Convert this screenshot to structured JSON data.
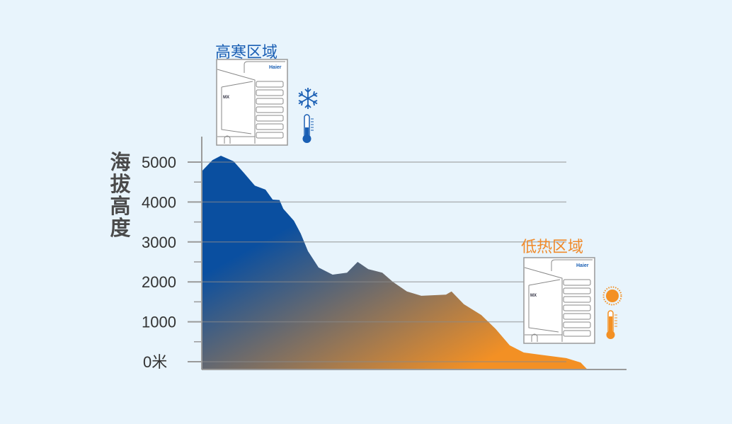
{
  "colors": {
    "cold": "#0a4fa0",
    "hot": "#f39024",
    "axis": "#9a9a9a",
    "text": "#333333"
  },
  "zones": {
    "cold": {
      "title": "高寒区域",
      "icons": [
        "snowflake-icon",
        "thermometer-low-icon"
      ],
      "unit_brand": "Haier",
      "unit_model": "MX"
    },
    "hot": {
      "title": "低热区域",
      "icons": [
        "sun-icon",
        "thermometer-high-icon"
      ],
      "unit_brand": "Haier",
      "unit_model": "MX"
    }
  },
  "chart_data": {
    "type": "area",
    "ylabel": "海拔高度",
    "ylim": [
      -200,
      5800
    ],
    "yticks": [
      0,
      1000,
      2000,
      3000,
      4000,
      5000
    ],
    "ytick_labels": [
      "0米",
      "1000",
      "2000",
      "3000",
      "4000",
      "5000"
    ],
    "grid": true,
    "x": [
      0,
      2.5,
      4.5,
      7.5,
      10,
      12.5,
      15,
      16.7,
      18.3,
      19.2,
      21.7,
      23.3,
      25,
      27.5,
      30.8,
      34.2,
      36.7,
      39.2,
      42.5,
      45,
      48.3,
      51.7,
      57.5,
      58.8,
      61.7,
      65.8,
      69.2,
      72.5,
      75.8,
      80.8,
      85.8,
      89.2,
      90.8
    ],
    "y": [
      4770,
      5050,
      5160,
      5020,
      4720,
      4410,
      4310,
      4060,
      4050,
      3830,
      3530,
      3210,
      2770,
      2360,
      2180,
      2230,
      2500,
      2320,
      2230,
      2000,
      1760,
      1650,
      1680,
      1760,
      1440,
      1170,
      820,
      410,
      230,
      160,
      90,
      -20,
      -195
    ],
    "fill": "gradient from cold (high) to hot (low)"
  }
}
